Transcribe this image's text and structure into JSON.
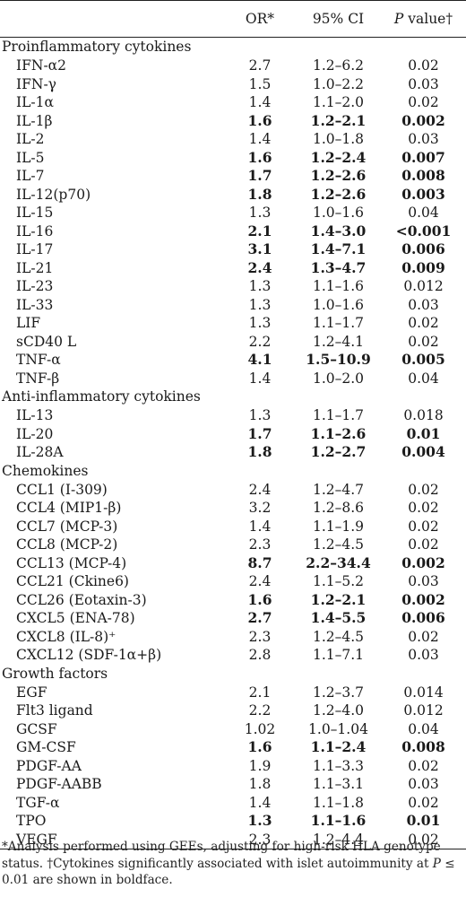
{
  "header": {
    "col_name": "",
    "col_or": "OR*",
    "col_ci": "95% CI",
    "col_p_italic": "P",
    "col_p_rest": " value†"
  },
  "groups": [
    {
      "title": "Proinflammatory cytokines",
      "rows": [
        {
          "name": "IFN-α2",
          "or": "2.7",
          "ci": "1.2–6.2",
          "p": "0.02",
          "bold": false
        },
        {
          "name": "IFN-γ",
          "or": "1.5",
          "ci": "1.0–2.2",
          "p": "0.03",
          "bold": false
        },
        {
          "name": "IL-1α",
          "or": "1.4",
          "ci": "1.1–2.0",
          "p": "0.02",
          "bold": false
        },
        {
          "name": "IL-1β",
          "or": "1.6",
          "ci": "1.2–2.1",
          "p": "0.002",
          "bold": true
        },
        {
          "name": "IL-2",
          "or": "1.4",
          "ci": "1.0–1.8",
          "p": "0.03",
          "bold": false
        },
        {
          "name": "IL-5",
          "or": "1.6",
          "ci": "1.2–2.4",
          "p": "0.007",
          "bold": true
        },
        {
          "name": "IL-7",
          "or": "1.7",
          "ci": "1.2–2.6",
          "p": "0.008",
          "bold": true
        },
        {
          "name": "IL-12(p70)",
          "or": "1.8",
          "ci": "1.2–2.6",
          "p": "0.003",
          "bold": true
        },
        {
          "name": "IL-15",
          "or": "1.3",
          "ci": "1.0–1.6",
          "p": "0.04",
          "bold": false
        },
        {
          "name": "IL-16",
          "or": "2.1",
          "ci": "1.4–3.0",
          "p": "<0.001",
          "bold": true
        },
        {
          "name": "IL-17",
          "or": "3.1",
          "ci": "1.4–7.1",
          "p": "0.006",
          "bold": true
        },
        {
          "name": "IL-21",
          "or": "2.4",
          "ci": "1.3–4.7",
          "p": "0.009",
          "bold": true
        },
        {
          "name": "IL-23",
          "or": "1.3",
          "ci": "1.1–1.6",
          "p": "0.012",
          "bold": false
        },
        {
          "name": "IL-33",
          "or": "1.3",
          "ci": "1.0–1.6",
          "p": "0.03",
          "bold": false
        },
        {
          "name": "LIF",
          "or": "1.3",
          "ci": "1.1–1.7",
          "p": "0.02",
          "bold": false
        },
        {
          "name": "sCD40 L",
          "or": "2.2",
          "ci": "1.2–4.1",
          "p": "0.02",
          "bold": false
        },
        {
          "name": "TNF-α",
          "or": "4.1",
          "ci": "1.5–10.9",
          "p": "0.005",
          "bold": true
        },
        {
          "name": "TNF-β",
          "or": "1.4",
          "ci": "1.0–2.0",
          "p": "0.04",
          "bold": false
        }
      ]
    },
    {
      "title": "Anti-inflammatory cytokines",
      "rows": [
        {
          "name": "IL-13",
          "or": "1.3",
          "ci": "1.1–1.7",
          "p": "0.018",
          "bold": false
        },
        {
          "name": "IL-20",
          "or": "1.7",
          "ci": "1.1–2.6",
          "p": "0.01",
          "bold": true
        },
        {
          "name": "IL-28A",
          "or": "1.8",
          "ci": "1.2–2.7",
          "p": "0.004",
          "bold": true
        }
      ]
    },
    {
      "title": "Chemokines",
      "rows": [
        {
          "name": "CCL1 (I-309)",
          "or": "2.4",
          "ci": "1.2–4.7",
          "p": "0.02",
          "bold": false
        },
        {
          "name": "CCL4 (MIP1-β)",
          "or": "3.2",
          "ci": "1.2–8.6",
          "p": "0.02",
          "bold": false
        },
        {
          "name": "CCL7 (MCP-3)",
          "or": "1.4",
          "ci": "1.1–1.9",
          "p": "0.02",
          "bold": false
        },
        {
          "name": "CCL8 (MCP-2)",
          "or": "2.3",
          "ci": "1.2–4.5",
          "p": "0.02",
          "bold": false
        },
        {
          "name": "CCL13 (MCP-4)",
          "or": "8.7",
          "ci": "2.2–34.4",
          "p": "0.002",
          "bold": true
        },
        {
          "name": "CCL21 (Ckine6)",
          "or": "2.4",
          "ci": "1.1–5.2",
          "p": "0.03",
          "bold": false
        },
        {
          "name": "CCL26 (Eotaxin-3)",
          "or": "1.6",
          "ci": "1.2–2.1",
          "p": "0.002",
          "bold": true
        },
        {
          "name": "CXCL5 (ENA-78)",
          "or": "2.7",
          "ci": "1.4–5.5",
          "p": "0.006",
          "bold": true
        },
        {
          "name": "CXCL8 (IL-8)⁺",
          "or": "2.3",
          "ci": "1.2–4.5",
          "p": "0.02",
          "bold": false
        },
        {
          "name": "CXCL12 (SDF-1α+β)",
          "or": "2.8",
          "ci": "1.1–7.1",
          "p": "0.03",
          "bold": false
        }
      ]
    },
    {
      "title": "Growth factors",
      "rows": [
        {
          "name": "EGF",
          "or": "2.1",
          "ci": "1.2–3.7",
          "p": "0.014",
          "bold": false
        },
        {
          "name": "Flt3 ligand",
          "or": "2.2",
          "ci": "1.2–4.0",
          "p": "0.012",
          "bold": false
        },
        {
          "name": "GCSF",
          "or": "1.02",
          "ci": "1.0–1.04",
          "p": "0.04",
          "bold": false
        },
        {
          "name": "GM-CSF",
          "or": "1.6",
          "ci": "1.1–2.4",
          "p": "0.008",
          "bold": true
        },
        {
          "name": "PDGF-AA",
          "or": "1.9",
          "ci": "1.1–3.3",
          "p": "0.02",
          "bold": false
        },
        {
          "name": "PDGF-AABB",
          "or": "1.8",
          "ci": "1.1–3.1",
          "p": "0.03",
          "bold": false
        },
        {
          "name": "TGF-α",
          "or": "1.4",
          "ci": "1.1–1.8",
          "p": "0.02",
          "bold": false
        },
        {
          "name": "TPO",
          "or": "1.3",
          "ci": "1.1–1.6",
          "p": "0.01",
          "bold": true
        },
        {
          "name": "VEGF",
          "or": "2.3",
          "ci": "1.2–4.4",
          "p": "0.02",
          "bold": false
        }
      ]
    }
  ],
  "footnote": {
    "part1": "*Analysis performed using GEEs, adjusting for high-risk HLA genotype status. †Cytokines significantly associated with islet autoimmunity at ",
    "p_italic": "P",
    "part2": " ≤ 0.01 are shown in boldface."
  }
}
